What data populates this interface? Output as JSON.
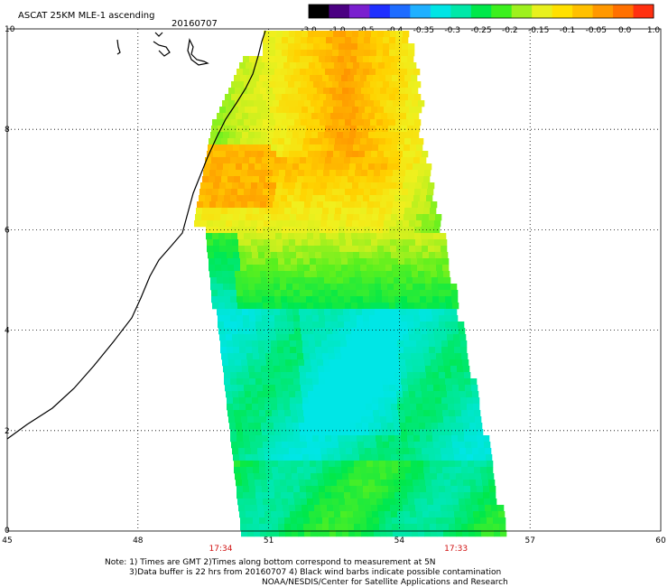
{
  "header": {
    "title": "ASCAT 25KM MLE-1 ascending",
    "date": "20160707"
  },
  "colorbar": {
    "ticks": [
      "-3.0",
      "-1.0",
      "-0.5",
      "-0.4",
      "-0.35",
      "-0.3",
      "-0.25",
      "-0.2",
      "-0.15",
      "-0.1",
      "-0.05",
      "0.0",
      "1.0"
    ],
    "colors": [
      "#000000",
      "#4b0082",
      "#7a1fcf",
      "#1f2fff",
      "#1e6cff",
      "#1fb0ff",
      "#00e5e5",
      "#00e8a8",
      "#00e84a",
      "#3cf01e",
      "#9ef01e",
      "#e8f01e",
      "#ffe000",
      "#ffc000",
      "#ff9800",
      "#ff7000",
      "#ff3010"
    ]
  },
  "map": {
    "lon_ticks": [
      "45",
      "48",
      "51",
      "54",
      "57",
      "60"
    ],
    "lat_ticks": [
      "0",
      "2",
      "4",
      "6",
      "8",
      "10"
    ],
    "lon_range": [
      45,
      60
    ],
    "lat_range": [
      0,
      10
    ],
    "times": [
      {
        "label": "17:34",
        "lon": 49.9
      },
      {
        "label": "17:33",
        "lon": 55.3
      }
    ]
  },
  "notes": {
    "line1": "Note: 1) Times are GMT 2)Times along bottom correspond to measurement at 5N",
    "line2": "3)Data buffer is 22 hrs from 20160707 4) Black wind barbs indicate possible contamination",
    "line3": "NOAA/NESDIS/Center for Satellite Applications and Research"
  }
}
